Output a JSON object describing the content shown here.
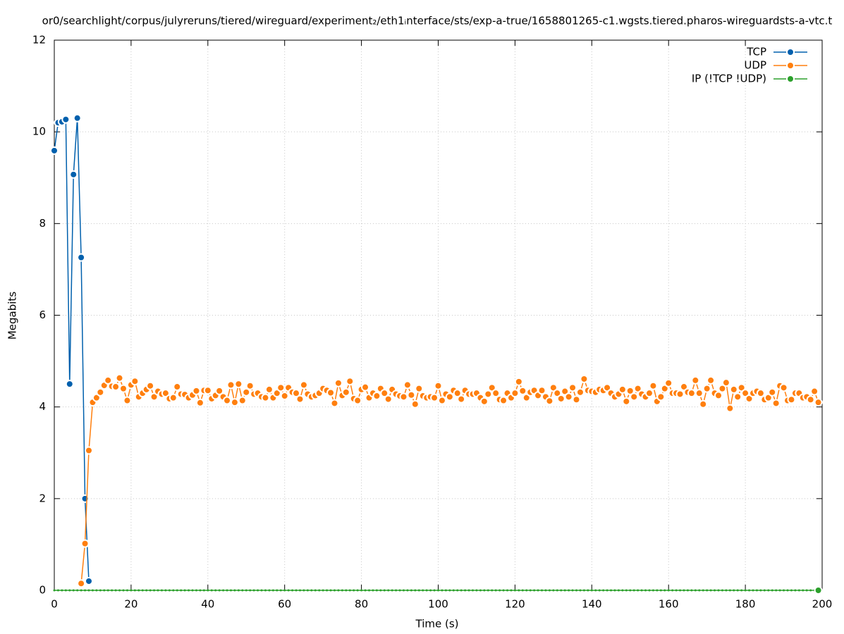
{
  "chart_data": {
    "type": "line",
    "title": "or0/searchlight/corpus/julyreruns/tiered/wireguard/experiment₂/eth1ᵢnterface/sts/exp-a-true/1658801265-c1.wgsts.tiered.pharos-wireguardsts-a-vtc.t",
    "xlabel": "Time (s)",
    "ylabel": "Megabits",
    "xlim": [
      0,
      200
    ],
    "ylim": [
      0,
      12
    ],
    "xticks": [
      0,
      20,
      40,
      60,
      80,
      100,
      120,
      140,
      160,
      180,
      200
    ],
    "yticks": [
      0,
      2,
      4,
      6,
      8,
      10,
      12
    ],
    "grid": true,
    "legend": "top-right",
    "x": [
      0,
      1,
      2,
      3,
      4,
      5,
      6,
      7,
      8,
      9,
      10,
      11,
      12,
      13,
      14,
      15,
      16,
      17,
      18,
      19,
      20,
      21,
      22,
      23,
      24,
      25,
      26,
      27,
      28,
      29,
      30,
      31,
      32,
      33,
      34,
      35,
      36,
      37,
      38,
      39,
      40,
      41,
      42,
      43,
      44,
      45,
      46,
      47,
      48,
      49,
      50,
      51,
      52,
      53,
      54,
      55,
      56,
      57,
      58,
      59,
      60,
      61,
      62,
      63,
      64,
      65,
      66,
      67,
      68,
      69,
      70,
      71,
      72,
      73,
      74,
      75,
      76,
      77,
      78,
      79,
      80,
      81,
      82,
      83,
      84,
      85,
      86,
      87,
      88,
      89,
      90,
      91,
      92,
      93,
      94,
      95,
      96,
      97,
      98,
      99,
      100,
      101,
      102,
      103,
      104,
      105,
      106,
      107,
      108,
      109,
      110,
      111,
      112,
      113,
      114,
      115,
      116,
      117,
      118,
      119,
      120,
      121,
      122,
      123,
      124,
      125,
      126,
      127,
      128,
      129,
      130,
      131,
      132,
      133,
      134,
      135,
      136,
      137,
      138,
      139,
      140,
      141,
      142,
      143,
      144,
      145,
      146,
      147,
      148,
      149,
      150,
      151,
      152,
      153,
      154,
      155,
      156,
      157,
      158,
      159,
      160,
      161,
      162,
      163,
      164,
      165,
      166,
      167,
      168,
      169,
      170,
      171,
      172,
      173,
      174,
      175,
      176,
      177,
      178,
      179,
      180,
      181,
      182,
      183,
      184,
      185,
      186,
      187,
      188,
      189,
      190,
      191,
      192,
      193,
      194,
      195,
      196,
      197,
      198,
      199
    ],
    "series": [
      {
        "name": "TCP",
        "color": "#0060ad",
        "values": [
          9.59,
          10.2,
          10.22,
          10.27,
          4.5,
          9.07,
          10.3,
          7.26,
          2.0,
          0.2,
          null,
          null,
          null,
          null,
          null,
          null,
          null,
          null,
          null,
          null,
          null,
          null,
          null,
          null,
          null,
          null,
          null,
          null,
          null,
          null,
          null,
          null,
          null,
          null,
          null,
          null,
          null,
          null,
          null,
          null,
          null,
          null,
          null,
          null,
          null,
          null,
          null,
          null,
          null,
          null,
          null,
          null,
          null,
          null,
          null,
          null,
          null,
          null,
          null,
          null,
          null,
          null,
          null,
          null,
          null,
          null,
          null,
          null,
          null,
          null,
          null,
          null,
          null,
          null,
          null,
          null,
          null,
          null,
          null,
          null,
          null,
          null,
          null,
          null,
          null,
          null,
          null,
          null,
          null,
          null,
          null,
          null,
          null,
          null,
          null,
          null,
          null,
          null,
          null,
          null,
          null,
          null,
          null,
          null,
          null,
          null,
          null,
          null,
          null,
          null,
          null,
          null,
          null,
          null,
          null,
          null,
          null,
          null,
          null,
          null,
          null,
          null,
          null,
          null,
          null,
          null,
          null,
          null,
          null,
          null,
          null,
          null,
          null,
          null,
          null,
          null,
          null,
          null,
          null,
          null,
          null,
          null,
          null,
          null,
          null,
          null,
          null,
          null,
          null,
          null,
          null,
          null,
          null,
          null,
          null,
          null,
          null,
          null,
          null,
          null,
          null,
          null,
          null,
          null,
          null,
          null,
          null,
          null,
          null,
          null,
          null,
          null,
          null,
          null,
          null,
          null,
          null,
          null,
          null,
          null,
          null,
          null,
          null,
          null,
          null,
          null,
          null,
          null,
          null,
          null,
          null,
          null,
          null,
          null,
          null,
          null,
          null,
          null,
          null,
          null
        ]
      },
      {
        "name": "UDP",
        "color": "#ff7f0e",
        "values": [
          null,
          null,
          null,
          null,
          null,
          null,
          null,
          0.15,
          1.02,
          3.05,
          4.1,
          4.2,
          4.32,
          4.47,
          4.58,
          4.45,
          4.44,
          4.63,
          4.4,
          4.14,
          4.48,
          4.56,
          4.22,
          4.3,
          4.38,
          4.46,
          4.22,
          4.34,
          4.28,
          4.3,
          4.18,
          4.2,
          4.44,
          4.28,
          4.27,
          4.2,
          4.26,
          4.35,
          4.09,
          4.36,
          4.36,
          4.18,
          4.25,
          4.35,
          4.22,
          4.14,
          4.48,
          4.1,
          4.5,
          4.14,
          4.32,
          4.46,
          4.28,
          4.3,
          4.22,
          4.2,
          4.38,
          4.2,
          4.3,
          4.42,
          4.24,
          4.42,
          4.32,
          4.3,
          4.17,
          4.48,
          4.28,
          4.22,
          4.25,
          4.3,
          4.4,
          4.36,
          4.31,
          4.08,
          4.52,
          4.25,
          4.32,
          4.56,
          4.18,
          4.14,
          4.38,
          4.43,
          4.2,
          4.3,
          4.24,
          4.4,
          4.3,
          4.17,
          4.38,
          4.28,
          4.24,
          4.22,
          4.48,
          4.26,
          4.06,
          4.4,
          4.24,
          4.2,
          4.22,
          4.2,
          4.46,
          4.14,
          4.28,
          4.22,
          4.36,
          4.3,
          4.17,
          4.36,
          4.28,
          4.28,
          4.3,
          4.2,
          4.12,
          4.28,
          4.42,
          4.3,
          4.16,
          4.14,
          4.3,
          4.2,
          4.3,
          4.55,
          4.35,
          4.2,
          4.32,
          4.36,
          4.25,
          4.36,
          4.22,
          4.13,
          4.42,
          4.3,
          4.18,
          4.34,
          4.22,
          4.42,
          4.16,
          4.32,
          4.61,
          4.36,
          4.34,
          4.32,
          4.38,
          4.36,
          4.42,
          4.3,
          4.22,
          4.28,
          4.38,
          4.12,
          4.35,
          4.22,
          4.4,
          4.28,
          4.22,
          4.3,
          4.46,
          4.12,
          4.22,
          4.4,
          4.52,
          4.3,
          4.3,
          4.28,
          4.44,
          4.32,
          4.3,
          4.58,
          4.3,
          4.06,
          4.4,
          4.58,
          4.3,
          4.25,
          4.4,
          4.53,
          3.97,
          4.38,
          4.22,
          4.42,
          4.3,
          4.18,
          4.3,
          4.34,
          4.3,
          4.16,
          4.2,
          4.32,
          4.08,
          4.46,
          4.42,
          4.14,
          4.16,
          4.3,
          4.3,
          4.2,
          4.22,
          4.16,
          4.34,
          4.1
        ]
      },
      {
        "name": "IP (!TCP  !UDP)",
        "color": "#2ca02c",
        "values": [
          0,
          0,
          0,
          0,
          0,
          0,
          0,
          0,
          0,
          0,
          0,
          0,
          0,
          0,
          0,
          0,
          0,
          0,
          0,
          0,
          0,
          0,
          0,
          0,
          0,
          0,
          0,
          0,
          0,
          0,
          0,
          0,
          0,
          0,
          0,
          0,
          0,
          0,
          0,
          0,
          0,
          0,
          0,
          0,
          0,
          0,
          0,
          0,
          0,
          0,
          0,
          0,
          0,
          0,
          0,
          0,
          0,
          0,
          0,
          0,
          0,
          0,
          0,
          0,
          0,
          0,
          0,
          0,
          0,
          0,
          0,
          0,
          0,
          0,
          0,
          0,
          0,
          0,
          0,
          0,
          0,
          0,
          0,
          0,
          0,
          0,
          0,
          0,
          0,
          0,
          0,
          0,
          0,
          0,
          0,
          0,
          0,
          0,
          0,
          0,
          0,
          0,
          0,
          0,
          0,
          0,
          0,
          0,
          0,
          0,
          0,
          0,
          0,
          0,
          0,
          0,
          0,
          0,
          0,
          0,
          0,
          0,
          0,
          0,
          0,
          0,
          0,
          0,
          0,
          0,
          0,
          0,
          0,
          0,
          0,
          0,
          0,
          0,
          0,
          0,
          0,
          0,
          0,
          0,
          0,
          0,
          0,
          0,
          0,
          0,
          0,
          0,
          0,
          0,
          0,
          0,
          0,
          0,
          0,
          0,
          0,
          0,
          0,
          0,
          0,
          0,
          0,
          0,
          0,
          0,
          0,
          0,
          0,
          0,
          0,
          0,
          0,
          0,
          0,
          0,
          0,
          0,
          0,
          0,
          0,
          0,
          0,
          0,
          0,
          0,
          0,
          0,
          0,
          0,
          0,
          0,
          0,
          0,
          0,
          0
        ]
      }
    ]
  }
}
